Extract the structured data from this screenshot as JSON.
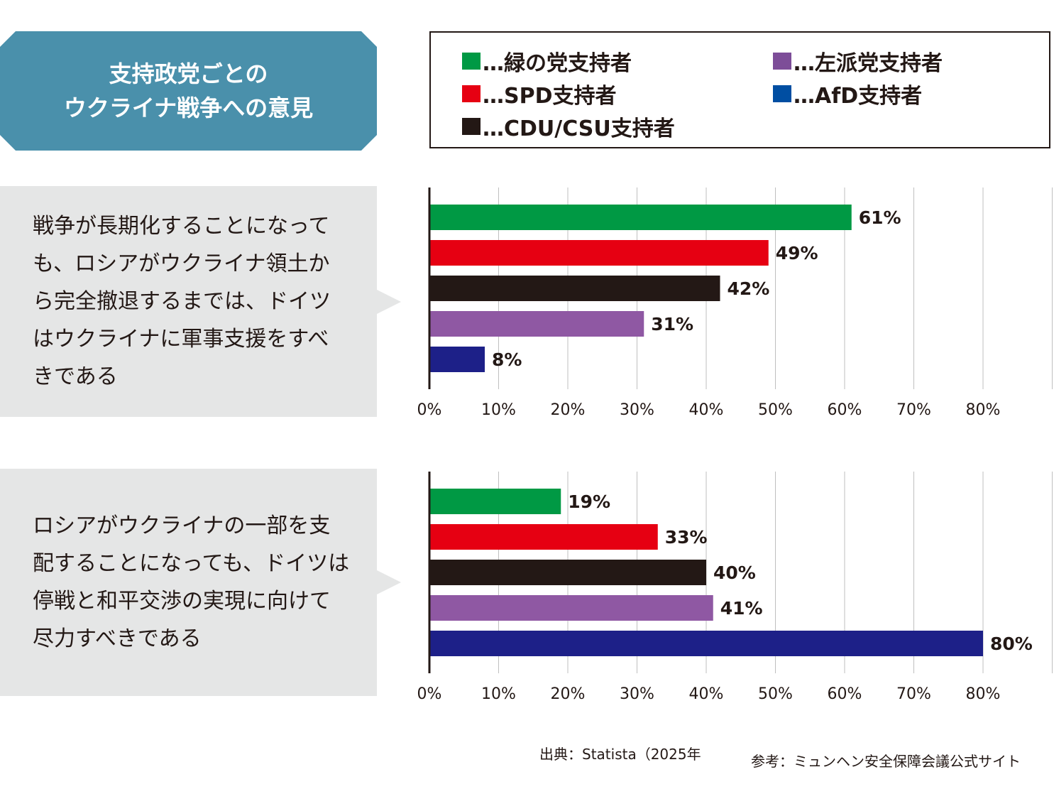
{
  "title": {
    "line1": "支持政党ごとの",
    "line2": "ウクライナ戦争への意見"
  },
  "legend": [
    {
      "label": "…緑の党支持者",
      "color": "#009944"
    },
    {
      "label": "…左派党支持者",
      "color": "#7d4d98"
    },
    {
      "label": "…SPD支持者",
      "color": "#e60012"
    },
    {
      "label": "…AfD支持者",
      "color": "#004ea2"
    },
    {
      "label": "…CDU/CSU支持者",
      "color": "#231815"
    }
  ],
  "questions": [
    {
      "lines": [
        "戦争が長期化することになって",
        "も、ロシアがウクライナ領土か",
        "ら完全撤退するまでは、ドイツ",
        "はウクライナに軍事支援をすべ",
        "きである"
      ]
    },
    {
      "lines": [
        "ロシアがウクライナの一部を支",
        "配することになっても、ドイツは",
        "停戦と和平交渉の実現に向けて",
        "尽力すべきである"
      ]
    }
  ],
  "chart_data": [
    {
      "type": "bar",
      "orientation": "horizontal",
      "categories": [
        "緑の党支持者",
        "SPD支持者",
        "CDU/CSU支持者",
        "左派党支持者",
        "AfD支持者"
      ],
      "values": [
        61,
        49,
        42,
        31,
        8
      ],
      "value_labels": [
        "61%",
        "49%",
        "42%",
        "31%",
        "8%"
      ],
      "colors": [
        "#009944",
        "#e60012",
        "#231815",
        "#8f58a3",
        "#1d2088"
      ],
      "xlim": [
        0,
        90
      ],
      "ticks": [
        0,
        10,
        20,
        30,
        40,
        50,
        60,
        70,
        80
      ],
      "tick_labels": [
        "0%",
        "10%",
        "20%",
        "30%",
        "40%",
        "50%",
        "60%",
        "70%",
        "80%"
      ],
      "grid": true
    },
    {
      "type": "bar",
      "orientation": "horizontal",
      "categories": [
        "緑の党支持者",
        "SPD支持者",
        "CDU/CSU支持者",
        "左派党支持者",
        "AfD支持者"
      ],
      "values": [
        19,
        33,
        40,
        41,
        80
      ],
      "value_labels": [
        "19%",
        "33%",
        "40%",
        "41%",
        "80%"
      ],
      "colors": [
        "#009944",
        "#e60012",
        "#231815",
        "#8f58a3",
        "#1d2088"
      ],
      "xlim": [
        0,
        90
      ],
      "ticks": [
        0,
        10,
        20,
        30,
        40,
        50,
        60,
        70,
        80
      ],
      "tick_labels": [
        "0%",
        "10%",
        "20%",
        "30%",
        "40%",
        "50%",
        "60%",
        "70%",
        "80%"
      ],
      "grid": true
    }
  ],
  "footer": {
    "source": "出典：Statista（2025年",
    "reference": "参考：ミュンヘン安全保障会議公式サイト"
  }
}
